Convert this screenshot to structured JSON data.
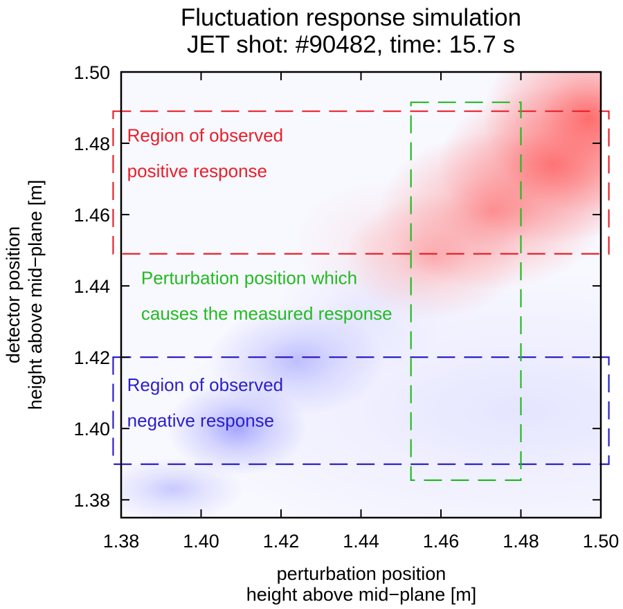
{
  "chart_data": {
    "type": "heatmap",
    "title": "Fluctuation response simulation",
    "subtitle": "JET shot: #90482, time: 15.7 s",
    "xlabel_lines": [
      "perturbation position",
      "height above mid−plane [m]"
    ],
    "ylabel_lines": [
      "detector position",
      "height above mid−plane [m]"
    ],
    "xlim": [
      1.38,
      1.5
    ],
    "ylim": [
      1.375,
      1.5
    ],
    "x_ticks": [
      1.38,
      1.4,
      1.42,
      1.44,
      1.46,
      1.48,
      1.5
    ],
    "y_ticks": [
      1.38,
      1.4,
      1.42,
      1.44,
      1.46,
      1.48,
      1.5
    ],
    "x_tick_labels": [
      "1.38",
      "1.40",
      "1.42",
      "1.44",
      "1.46",
      "1.48",
      "1.50"
    ],
    "y_tick_labels": [
      "1.38",
      "1.40",
      "1.42",
      "1.44",
      "1.46",
      "1.48",
      "1.50"
    ],
    "colors": {
      "positive": "#ff5a5a",
      "negative": "#5a5aff",
      "positive_region": "#e8202a",
      "negative_region": "#2a1fc8",
      "perturbation_region": "#22bb22",
      "axes": "#000000"
    },
    "response_blobs": [
      {
        "sign": "positive",
        "x": 1.497,
        "y": 1.487,
        "sx": 0.012,
        "sy": 0.012,
        "amp": 0.85
      },
      {
        "sign": "positive",
        "x": 1.488,
        "y": 1.474,
        "sx": 0.013,
        "sy": 0.01,
        "amp": 0.75
      },
      {
        "sign": "positive",
        "x": 1.473,
        "y": 1.461,
        "sx": 0.013,
        "sy": 0.01,
        "amp": 0.62
      },
      {
        "sign": "positive",
        "x": 1.458,
        "y": 1.448,
        "sx": 0.01,
        "sy": 0.008,
        "amp": 0.4
      },
      {
        "sign": "positive",
        "x": 1.445,
        "y": 1.452,
        "sx": 0.01,
        "sy": 0.008,
        "amp": 0.12
      },
      {
        "sign": "negative",
        "x": 1.409,
        "y": 1.4,
        "sx": 0.008,
        "sy": 0.006,
        "amp": 0.5
      },
      {
        "sign": "negative",
        "x": 1.424,
        "y": 1.419,
        "sx": 0.01,
        "sy": 0.007,
        "amp": 0.35
      },
      {
        "sign": "negative",
        "x": 1.393,
        "y": 1.383,
        "sx": 0.008,
        "sy": 0.004,
        "amp": 0.3
      },
      {
        "sign": "negative",
        "x": 1.48,
        "y": 1.405,
        "sx": 0.04,
        "sy": 0.018,
        "amp": 0.12
      },
      {
        "sign": "negative",
        "x": 1.44,
        "y": 1.432,
        "sx": 0.01,
        "sy": 0.008,
        "amp": 0.1
      }
    ],
    "regions": [
      {
        "name": "positive-response-region",
        "kind": "positive_region",
        "x0": 1.378,
        "x1": 1.502,
        "y0": 1.449,
        "y1": 1.489
      },
      {
        "name": "negative-response-region",
        "kind": "negative_region",
        "x0": 1.378,
        "x1": 1.502,
        "y0": 1.39,
        "y1": 1.42
      },
      {
        "name": "perturbation-position-region",
        "kind": "perturbation_region",
        "x0": 1.4525,
        "x1": 1.48,
        "y0": 1.3855,
        "y1": 1.4915
      }
    ],
    "annotations": [
      {
        "name": "positive-response-label",
        "kind": "positive_region",
        "x": 1.3815,
        "lines": [
          {
            "text": "Region of observed",
            "y": 1.4805
          },
          {
            "text": "positive response",
            "y": 1.4705
          }
        ]
      },
      {
        "name": "perturbation-label",
        "kind": "perturbation_region",
        "x": 1.385,
        "lines": [
          {
            "text": "Perturbation position which",
            "y": 1.4405
          },
          {
            "text": "causes the measured response",
            "y": 1.4305
          }
        ]
      },
      {
        "name": "negative-response-label",
        "kind": "negative_region",
        "x": 1.3815,
        "lines": [
          {
            "text": "Region of observed",
            "y": 1.4105
          },
          {
            "text": "negative response",
            "y": 1.4005
          }
        ]
      }
    ]
  }
}
